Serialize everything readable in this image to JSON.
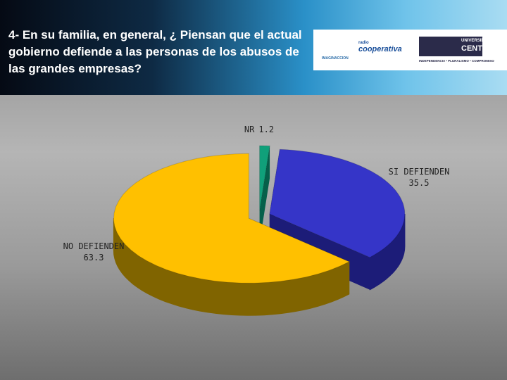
{
  "header": {
    "title": "4- En su familia, en general, ¿ Piensan que el actual gobierno defiende a las personas de los abusos de las grandes empresas?",
    "logos": [
      "IMAGINACCION",
      "radio",
      "cooperativa",
      "UNIVERSIDAD",
      "CENTRAL",
      "INDEPENDENCIA • PLURALISMO • COMPROMISO"
    ]
  },
  "chart_data": {
    "type": "pie",
    "categories": [
      "NR",
      "SI DEFIENDEN",
      "NO DEFIENDEN"
    ],
    "values": [
      1.2,
      35.5,
      63.3
    ],
    "colors": [
      "#10a07a",
      "#3535c8",
      "#ffc000"
    ],
    "side_colors": [
      "#05604a",
      "#1c1c78",
      "#806400"
    ]
  }
}
